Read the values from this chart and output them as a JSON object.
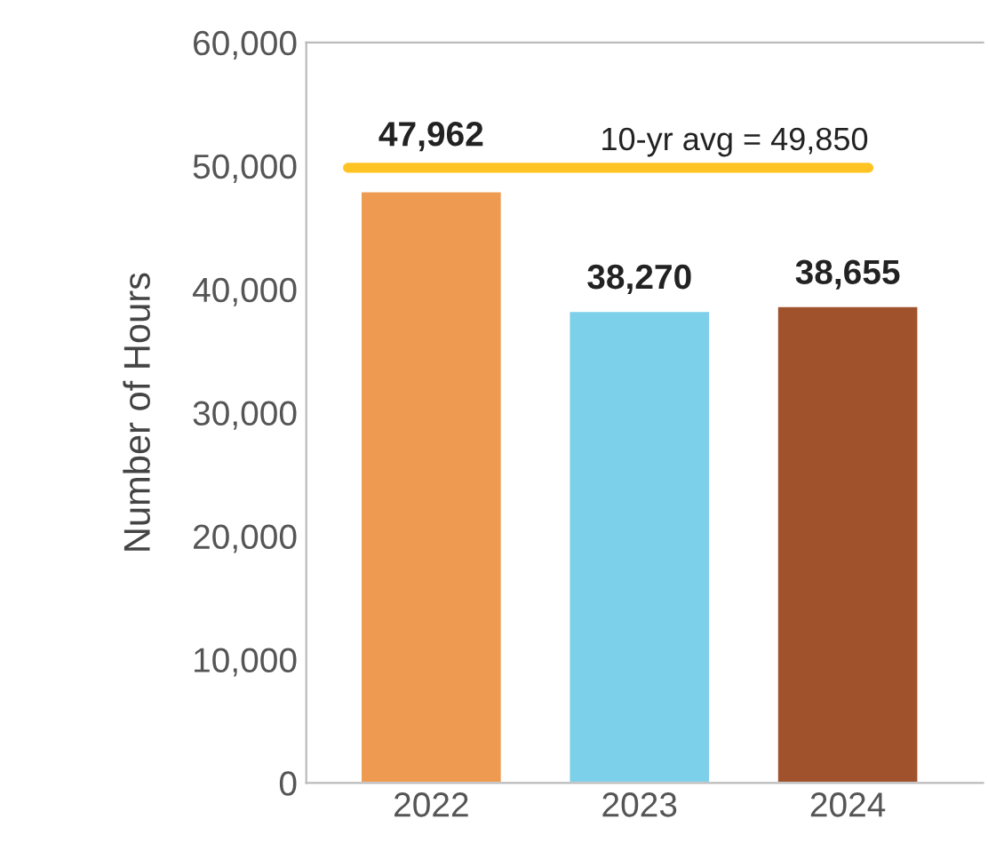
{
  "chart_data": {
    "type": "bar",
    "ylabel": "Number of Hours",
    "categories": [
      "2022",
      "2023",
      "2024"
    ],
    "values": [
      47962,
      38270,
      38655
    ],
    "colors": [
      "#ee9a50",
      "#7dd0ea",
      "#a0522d"
    ],
    "value_labels": [
      "47,962",
      "38,270",
      "38,655"
    ],
    "ylim": [
      0,
      60000
    ],
    "yticks": [
      {
        "value": 0,
        "label": "0"
      },
      {
        "value": 10000,
        "label": "10,000"
      },
      {
        "value": 20000,
        "label": "20,000"
      },
      {
        "value": 30000,
        "label": "30,000"
      },
      {
        "value": 40000,
        "label": "40,000"
      },
      {
        "value": 50000,
        "label": "50,000"
      },
      {
        "value": 60000,
        "label": "60,000"
      }
    ],
    "ref_lines": [
      {
        "axis": "y",
        "value": 49850,
        "label": "10-yr avg = 49,850",
        "color": "#ffc423",
        "line_style": "solid"
      }
    ],
    "grid": false,
    "legend": false
  }
}
